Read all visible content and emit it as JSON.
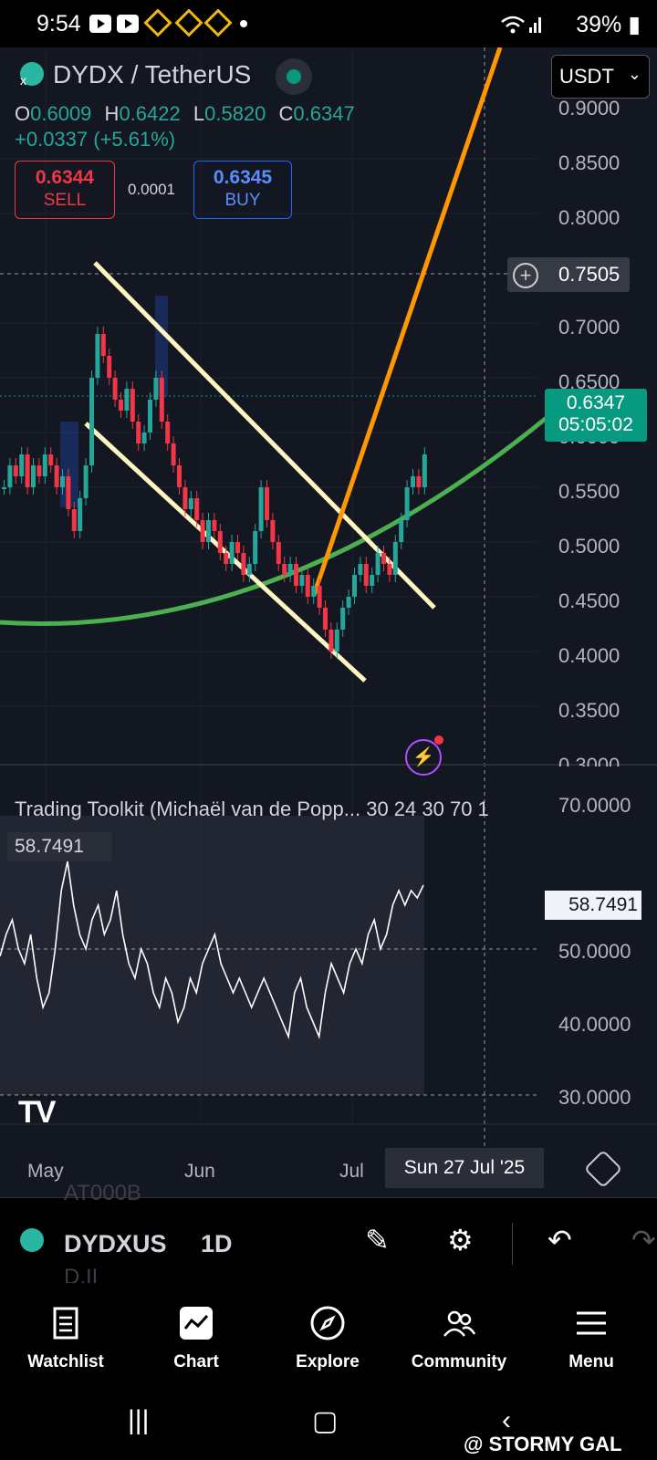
{
  "status_bar": {
    "time": "9:54",
    "battery": "39%"
  },
  "header": {
    "symbol_title": "DYDX / TetherUS",
    "open_label": "O",
    "open": "0.6009",
    "high_label": "H",
    "high": "0.6422",
    "low_label": "L",
    "low": "0.5820",
    "close_label": "C",
    "close": "0.6347",
    "change": "+0.0337 (+5.61%)",
    "sell_price": "0.6344",
    "sell_label": "SELL",
    "spread": "0.0001",
    "buy_price": "0.6345",
    "buy_label": "BUY",
    "currency": "USDT",
    "colors": {
      "up": "#26a69a",
      "down": "#f23645",
      "accent": "#089981",
      "buy": "#2962ff"
    }
  },
  "price_axis": {
    "ticks": [
      "0.9000",
      "0.8500",
      "0.8000",
      "0.7000",
      "0.6500",
      "0.6000",
      "0.5500",
      "0.5000",
      "0.4500",
      "0.4000",
      "0.3500",
      "0.3000"
    ],
    "crosshair_price": "0.7505",
    "last_price": "0.6347",
    "countdown": "05:05:02"
  },
  "indicator": {
    "title": "Trading Toolkit (Michaël van de Popp... 30 24 30 70 1",
    "value": "58.7491",
    "tag_value": "58.7491",
    "ticks": [
      "70.0000",
      "50.0000",
      "40.0000",
      "30.0000"
    ]
  },
  "time_axis": {
    "ticks": [
      "May",
      "Jun",
      "Jul"
    ],
    "selected_date": "Sun 27 Jul '25"
  },
  "symbol_bar": {
    "symbol": "DYDXUS",
    "timeframe": "1D",
    "ghost_top": "AT000B",
    "ghost_bottom": "D.II"
  },
  "bottom_nav": {
    "items": [
      {
        "label": "Watchlist",
        "icon": "watchlist-icon"
      },
      {
        "label": "Chart",
        "icon": "chart-icon"
      },
      {
        "label": "Explore",
        "icon": "compass-icon"
      },
      {
        "label": "Community",
        "icon": "community-icon"
      },
      {
        "label": "Menu",
        "icon": "menu-icon"
      }
    ]
  },
  "watermark": "@ STORMY GAL",
  "chart_data": {
    "type": "candlestick",
    "x": [
      "May",
      "Jun",
      "Jul"
    ],
    "ylim": [
      0.3,
      0.9
    ],
    "ohlc_last": {
      "open": 0.6009,
      "high": 0.6422,
      "low": 0.582,
      "close": 0.6347
    },
    "indicator_values": [
      49,
      52,
      54,
      50,
      48,
      52,
      46,
      42,
      44,
      50,
      58,
      62,
      56,
      52,
      50,
      54,
      56,
      52,
      54,
      58,
      52,
      48,
      46,
      50,
      48,
      44,
      42,
      46,
      44,
      40,
      42,
      46,
      44,
      48,
      50,
      52,
      48,
      46,
      44,
      46,
      44,
      42,
      44,
      46,
      44,
      42,
      40,
      38,
      44,
      46,
      42,
      40,
      38,
      44,
      48,
      46,
      44,
      48,
      50,
      48,
      52,
      54,
      50,
      52,
      56,
      58,
      56,
      58,
      57,
      58.7491
    ]
  }
}
